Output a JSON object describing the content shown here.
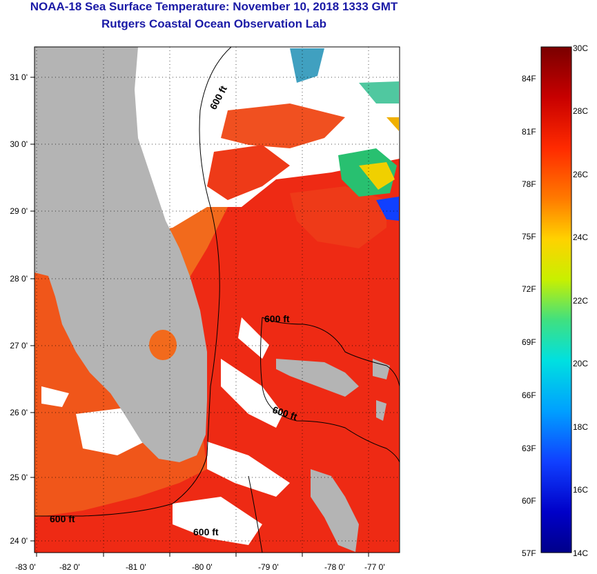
{
  "header": {
    "title_line1": "NOAA-18 Sea Surface Temperature:  November 10, 2018 1333 GMT",
    "title_line2": "Rutgers Coastal Ocean Observation Lab"
  },
  "map": {
    "lat_labels": [
      "31 0'",
      "30 0'",
      "29 0'",
      "28 0'",
      "27 0'",
      "26 0'",
      "25 0'",
      "24 0'"
    ],
    "lon_labels": [
      "-83 0'",
      "-82 0'",
      "-81 0'",
      "-80 0'",
      "-79 0'",
      "-78 0'",
      "-77 0'"
    ],
    "isobath_labels": [
      "600 ft",
      "600 ft",
      "600 ft",
      "600 ft",
      "600 ft"
    ],
    "colors": {
      "land": "#b4b4b4",
      "cloud": "#ffffff",
      "warm_sea": "#ee2a14",
      "orange_sea": "#f26a1c"
    }
  },
  "colorbar": {
    "celsius": [
      "30C",
      "28C",
      "26C",
      "24C",
      "22C",
      "20C",
      "18C",
      "16C",
      "14C"
    ],
    "fahrenheit": [
      "84F",
      "81F",
      "78F",
      "75F",
      "72F",
      "69F",
      "66F",
      "63F",
      "60F",
      "57F"
    ],
    "gradient": [
      "#7a0000",
      "#c80000",
      "#ff2a00",
      "#ff7a00",
      "#ffd200",
      "#c8f000",
      "#40e080",
      "#00e0e0",
      "#00a0ff",
      "#1040ff",
      "#0000c8",
      "#00008a"
    ]
  }
}
